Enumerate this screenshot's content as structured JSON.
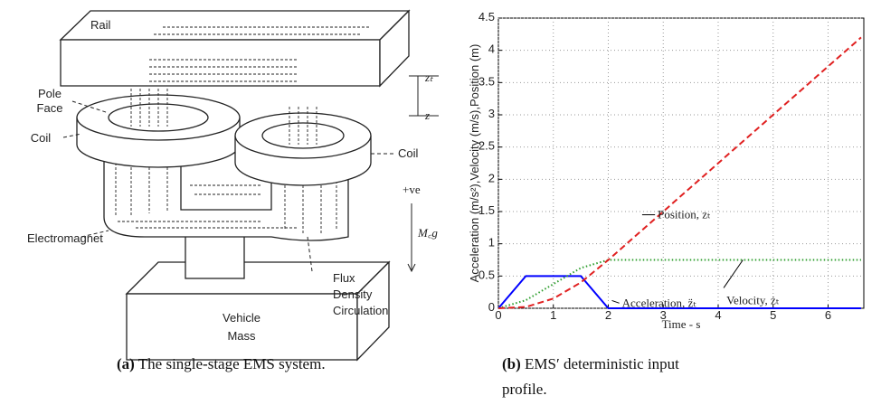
{
  "diagram": {
    "rail": "Rail",
    "pole_face": [
      "Pole",
      "Face"
    ],
    "coil_left": "Coil",
    "coil_right": "Coil",
    "electromagnet": "Electromagnet",
    "vehicle_mass": [
      "Vehicle",
      "Mass"
    ],
    "flux": [
      "Flux",
      "Density",
      "Circulation"
    ],
    "zt": "zₜ",
    "z": "z",
    "positive": "+ve",
    "force": "M꜀g"
  },
  "captions": [
    {
      "label": "(a)",
      "text": "The single-stage EMS system."
    },
    {
      "label": "(b)",
      "text": "EMS′ deterministic input profile."
    }
  ],
  "chart_data": {
    "type": "line",
    "xlabel": "Time - s",
    "ylabel": "Acceleration (m/s²),Velocity (m/s),Position (m)",
    "xlim": [
      0,
      6.65
    ],
    "ylim": [
      0,
      4.5
    ],
    "xticks": [
      0,
      1,
      2,
      3,
      4,
      5,
      6
    ],
    "yticks": [
      0,
      0.5,
      1,
      1.5,
      2,
      2.5,
      3,
      3.5,
      4,
      4.5
    ],
    "grid": true,
    "series": [
      {
        "name": "Acceleration, z̈ₜ",
        "color": "#0000ff",
        "style": "solid",
        "x": [
          0,
          0.5,
          1.5,
          2,
          6.6
        ],
        "values": [
          0,
          0.5,
          0.5,
          0,
          0
        ]
      },
      {
        "name": "Velocity, żₜ",
        "color": "#2e9e2e",
        "style": "dotted",
        "x": [
          0,
          0.5,
          1,
          1.5,
          2,
          6.6
        ],
        "values": [
          0,
          0.125,
          0.375,
          0.625,
          0.75,
          0.75
        ]
      },
      {
        "name": "Position, zₜ",
        "color": "#e02020",
        "style": "dashed",
        "x": [
          0,
          0.5,
          1,
          1.5,
          2,
          3,
          4,
          5,
          6,
          6.6
        ],
        "values": [
          0,
          0.02,
          0.15,
          0.4,
          0.75,
          1.5,
          2.25,
          3,
          3.75,
          4.2
        ]
      }
    ]
  }
}
